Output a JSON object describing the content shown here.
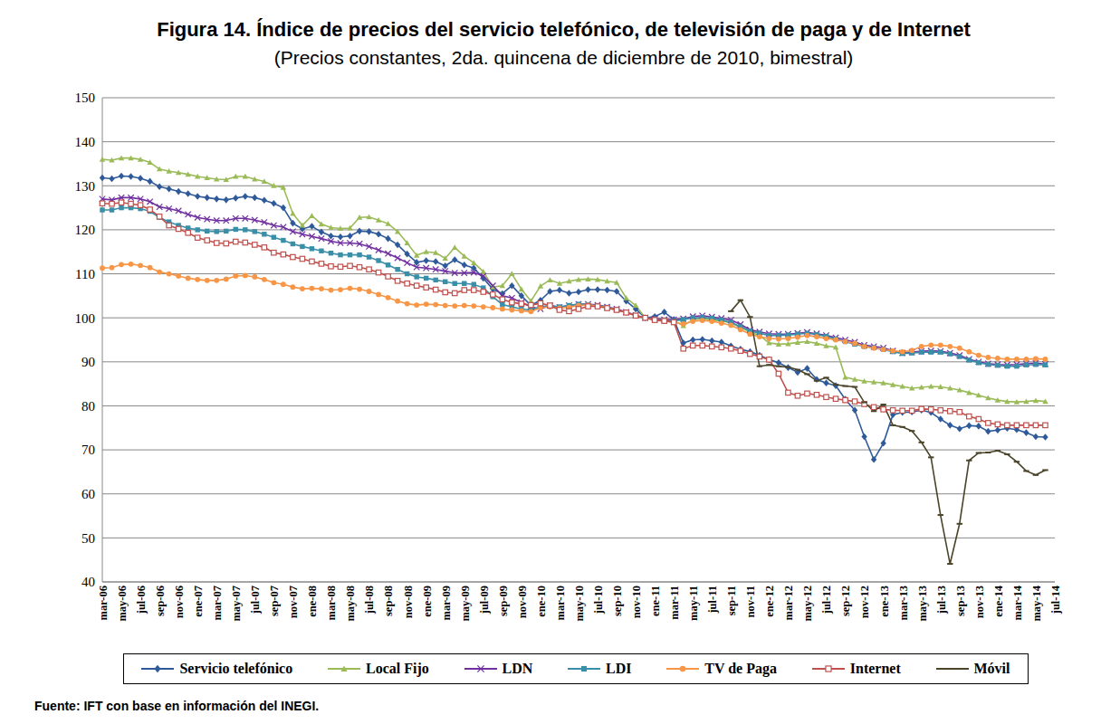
{
  "chart_data": {
    "type": "line",
    "title": "Figura 14. Índice de precios del servicio telefónico, de televisión de paga y de Internet",
    "subtitle": "(Precios constantes, 2da. quincena de diciembre de 2010, bimestral)",
    "source": "Fuente: IFT con base en información del INEGI.",
    "categories": [
      "mar-06",
      null,
      "may-06",
      null,
      "jul-06",
      null,
      "sep-06",
      null,
      "nov-06",
      null,
      "ene-07",
      null,
      "mar-07",
      null,
      "may-07",
      null,
      "jul-07",
      null,
      "sep-07",
      null,
      "nov-07",
      null,
      "ene-08",
      null,
      "mar-08",
      null,
      "may-08",
      null,
      "jul-08",
      null,
      "sep-08",
      null,
      "nov-08",
      null,
      "ene-09",
      null,
      "mar-09",
      null,
      "may-09",
      null,
      "jul-09",
      null,
      "sep-09",
      null,
      "nov-09",
      null,
      "ene-10",
      null,
      "mar-10",
      null,
      "may-10",
      null,
      "jul-10",
      null,
      "sep-10",
      null,
      "nov-10",
      null,
      "ene-11",
      null,
      "mar-11",
      null,
      "may-11",
      null,
      "jul-11",
      null,
      "sep-11",
      null,
      "nov-11",
      null,
      "ene-12",
      null,
      "mar-12",
      null,
      "may-12",
      null,
      "jul-12",
      null,
      "sep-12",
      null,
      "nov-12",
      null,
      "ene-13",
      null,
      "mar-13",
      null,
      "may-13",
      null,
      "jul-13",
      null,
      "sep-13",
      null,
      "nov-13",
      null,
      "ene-14",
      null,
      "mar-14",
      null,
      "may-14",
      null,
      "jul-14"
    ],
    "ylim": [
      40,
      150
    ],
    "yticks": [
      40,
      50,
      60,
      70,
      80,
      90,
      100,
      110,
      120,
      130,
      140,
      150
    ],
    "grid": true,
    "legend": "bottom",
    "series": [
      {
        "name": "Servicio telefónico",
        "color": "#2e5a9a",
        "marker": "diamond",
        "values": [
          131.8,
          131.6,
          132.2,
          132.1,
          131.7,
          131.0,
          129.8,
          129.3,
          128.7,
          128.2,
          127.6,
          127.3,
          127.0,
          126.8,
          127.2,
          127.6,
          127.3,
          126.7,
          126.0,
          125.0,
          121.5,
          120.2,
          120.8,
          119.5,
          118.6,
          118.4,
          118.6,
          119.7,
          119.6,
          119.0,
          118.0,
          116.6,
          114.5,
          112.6,
          113.0,
          112.8,
          111.8,
          113.2,
          112.0,
          111.3,
          109.0,
          106.5,
          105.5,
          107.3,
          105.0,
          102.8,
          104.0,
          106.0,
          106.3,
          105.6,
          105.9,
          106.4,
          106.4,
          106.3,
          106.0,
          103.8,
          102.0,
          100.0,
          100.3,
          101.3,
          99.6,
          94.3,
          95.0,
          95.1,
          94.8,
          94.5,
          93.6,
          92.9,
          92.3,
          91.5,
          90.5,
          89.8,
          88.7,
          87.6,
          88.5,
          86.0,
          85.2,
          84.6,
          81.5,
          79.0,
          73.0,
          67.8,
          71.5,
          78.0,
          78.5,
          78.6,
          79.0,
          78.5,
          77.0,
          75.6,
          74.8,
          75.5,
          75.4,
          74.2,
          74.5,
          74.9,
          74.6,
          73.9,
          73.0,
          72.9,
          null
        ]
      },
      {
        "name": "Local Fijo",
        "color": "#9bbb59",
        "marker": "triangle",
        "values": [
          136.0,
          135.8,
          136.3,
          136.3,
          136.0,
          135.3,
          133.8,
          133.3,
          133.0,
          132.6,
          132.1,
          131.8,
          131.5,
          131.4,
          132.1,
          132.1,
          131.5,
          131.0,
          130.0,
          129.6,
          123.7,
          121.0,
          123.2,
          121.3,
          120.5,
          120.3,
          120.4,
          122.8,
          122.9,
          122.2,
          121.4,
          119.6,
          117.0,
          114.2,
          115.0,
          114.8,
          113.5,
          116.0,
          114.0,
          112.5,
          110.5,
          107.0,
          107.3,
          110.0,
          106.5,
          103.8,
          107.2,
          108.6,
          107.8,
          108.3,
          108.7,
          108.8,
          108.7,
          108.3,
          108.0,
          104.5,
          102.8,
          100.0,
          99.8,
          99.5,
          99.3,
          98.2,
          99.6,
          99.8,
          99.5,
          99.3,
          98.8,
          97.8,
          96.8,
          96.0,
          94.3,
          94.0,
          94.1,
          94.4,
          94.6,
          94.2,
          93.6,
          93.3,
          86.5,
          86.0,
          85.6,
          85.4,
          85.2,
          84.8,
          84.4,
          84.0,
          84.2,
          84.4,
          84.3,
          84.0,
          83.6,
          83.0,
          82.4,
          81.8,
          81.3,
          81.0,
          80.9,
          81.0,
          81.2,
          81.0,
          null
        ]
      },
      {
        "name": "LDN",
        "color": "#7030a0",
        "marker": "x",
        "values": [
          127.0,
          126.8,
          127.3,
          127.3,
          127.0,
          126.4,
          125.2,
          124.8,
          124.3,
          123.5,
          122.8,
          122.4,
          122.1,
          122.1,
          122.6,
          122.6,
          122.2,
          121.7,
          121.0,
          120.6,
          119.6,
          119.0,
          118.5,
          118.0,
          117.4,
          117.0,
          117.0,
          116.8,
          116.2,
          115.4,
          114.6,
          113.6,
          112.5,
          111.5,
          111.3,
          111.0,
          110.6,
          110.2,
          110.2,
          110.3,
          109.5,
          107.3,
          105.0,
          104.5,
          103.5,
          102.5,
          102.0,
          102.8,
          102.4,
          102.8,
          103.1,
          103.1,
          102.9,
          102.5,
          102.0,
          101.3,
          100.6,
          100.0,
          99.8,
          99.6,
          99.6,
          99.8,
          100.3,
          100.5,
          100.2,
          99.9,
          99.5,
          98.5,
          97.3,
          96.8,
          96.4,
          96.3,
          96.3,
          96.5,
          96.7,
          96.4,
          96.0,
          95.5,
          95.0,
          94.5,
          93.8,
          93.5,
          93.2,
          92.5,
          92.0,
          92.2,
          92.4,
          92.5,
          92.4,
          92.0,
          91.5,
          90.6,
          90.0,
          89.6,
          89.4,
          89.3,
          89.4,
          89.6,
          89.7,
          89.5,
          null
        ]
      },
      {
        "name": "LDI",
        "color": "#3a8fa8",
        "marker": "square",
        "values": [
          124.5,
          124.5,
          125.0,
          125.0,
          124.8,
          124.2,
          122.8,
          121.8,
          121.0,
          120.4,
          120.0,
          119.7,
          119.6,
          119.7,
          120.1,
          120.0,
          119.6,
          119.0,
          118.3,
          117.6,
          116.8,
          116.2,
          115.7,
          115.2,
          114.7,
          114.3,
          114.3,
          114.3,
          113.8,
          113.0,
          112.0,
          111.0,
          110.0,
          109.3,
          109.0,
          108.6,
          108.2,
          107.8,
          107.8,
          107.6,
          106.8,
          104.8,
          103.0,
          102.5,
          102.0,
          101.8,
          102.5,
          102.8,
          102.5,
          102.8,
          103.1,
          103.0,
          102.8,
          102.4,
          101.8,
          101.2,
          100.5,
          100.0,
          99.6,
          99.4,
          99.3,
          99.6,
          100.0,
          100.1,
          99.9,
          99.5,
          99.0,
          98.0,
          97.0,
          96.5,
          96.0,
          96.0,
          96.1,
          96.3,
          96.5,
          96.2,
          95.8,
          95.2,
          94.6,
          94.0,
          93.5,
          93.2,
          92.8,
          92.3,
          91.9,
          92.0,
          92.2,
          92.2,
          92.2,
          91.8,
          91.2,
          90.4,
          89.8,
          89.4,
          89.2,
          89.0,
          89.0,
          89.3,
          89.4,
          89.3,
          null
        ]
      },
      {
        "name": "TV de Paga",
        "color": "#f79646",
        "marker": "circle",
        "values": [
          111.3,
          111.4,
          112.1,
          112.2,
          111.9,
          111.4,
          110.4,
          110.0,
          109.5,
          109.0,
          108.7,
          108.5,
          108.5,
          108.8,
          109.5,
          109.6,
          109.3,
          108.7,
          108.0,
          107.6,
          107.0,
          106.6,
          106.7,
          106.6,
          106.3,
          106.4,
          106.7,
          106.5,
          106.0,
          105.3,
          104.6,
          103.8,
          103.2,
          102.9,
          103.1,
          103.0,
          102.8,
          102.7,
          102.8,
          102.7,
          102.5,
          102.3,
          102.0,
          101.8,
          101.6,
          101.4,
          102.3,
          102.5,
          102.2,
          102.4,
          102.8,
          102.9,
          102.7,
          102.3,
          101.8,
          101.2,
          100.5,
          100.0,
          99.5,
          99.2,
          99.0,
          98.6,
          99.2,
          99.4,
          99.2,
          98.8,
          98.3,
          97.3,
          96.3,
          95.7,
          95.3,
          95.2,
          95.3,
          95.6,
          96.0,
          95.7,
          95.3,
          95.0,
          94.6,
          94.2,
          93.5,
          93.1,
          92.8,
          92.5,
          92.3,
          92.6,
          93.5,
          93.8,
          93.8,
          93.5,
          93.1,
          92.3,
          91.5,
          91.0,
          90.8,
          90.6,
          90.6,
          90.6,
          90.7,
          90.6,
          null
        ]
      },
      {
        "name": "Internet",
        "color": "#c0504d",
        "marker": "square_open",
        "values": [
          126.0,
          125.9,
          126.2,
          125.9,
          125.6,
          124.6,
          123.0,
          121.0,
          120.2,
          119.3,
          118.2,
          117.6,
          117.0,
          116.9,
          117.3,
          117.1,
          116.6,
          116.0,
          114.8,
          114.4,
          113.8,
          113.4,
          112.8,
          112.3,
          111.7,
          111.6,
          111.8,
          111.5,
          111.0,
          110.3,
          109.4,
          108.4,
          107.8,
          107.3,
          106.9,
          106.4,
          105.8,
          105.6,
          106.3,
          106.3,
          105.9,
          105.3,
          104.2,
          103.5,
          103.2,
          102.9,
          103.3,
          102.8,
          101.8,
          101.5,
          102.0,
          102.6,
          102.6,
          102.2,
          101.8,
          101.2,
          100.5,
          100.0,
          99.5,
          99.3,
          99.0,
          93.0,
          93.7,
          93.7,
          93.5,
          93.3,
          93.0,
          92.5,
          91.8,
          91.2,
          90.5,
          87.3,
          83.0,
          82.3,
          82.8,
          82.5,
          82.0,
          81.6,
          81.3,
          81.0,
          80.4,
          79.7,
          79.2,
          79.0,
          78.9,
          78.9,
          79.3,
          79.2,
          79.0,
          78.8,
          78.6,
          77.6,
          77.0,
          76.1,
          75.8,
          75.6,
          75.6,
          75.6,
          75.6,
          75.6,
          null
        ]
      },
      {
        "name": "Móvil",
        "color": "#4a452a",
        "marker": "dash",
        "values": [
          null,
          null,
          null,
          null,
          null,
          null,
          null,
          null,
          null,
          null,
          null,
          null,
          null,
          null,
          null,
          null,
          null,
          null,
          null,
          null,
          null,
          null,
          null,
          null,
          null,
          null,
          null,
          null,
          null,
          null,
          null,
          null,
          null,
          null,
          null,
          null,
          null,
          null,
          null,
          null,
          null,
          null,
          null,
          null,
          null,
          null,
          null,
          null,
          null,
          null,
          null,
          null,
          null,
          null,
          null,
          null,
          null,
          null,
          null,
          null,
          null,
          null,
          null,
          null,
          null,
          null,
          101.5,
          104.0,
          100.2,
          89.0,
          89.3,
          89.0,
          88.8,
          88.2,
          87.2,
          85.7,
          86.4,
          84.8,
          84.5,
          84.3,
          80.8,
          78.8,
          80.3,
          75.6,
          75.2,
          74.3,
          71.7,
          68.3,
          55.2,
          44.1,
          53.2,
          67.6,
          69.3,
          69.4,
          69.8,
          69.0,
          67.3,
          65.2,
          64.3,
          65.4,
          null
        ]
      }
    ]
  }
}
